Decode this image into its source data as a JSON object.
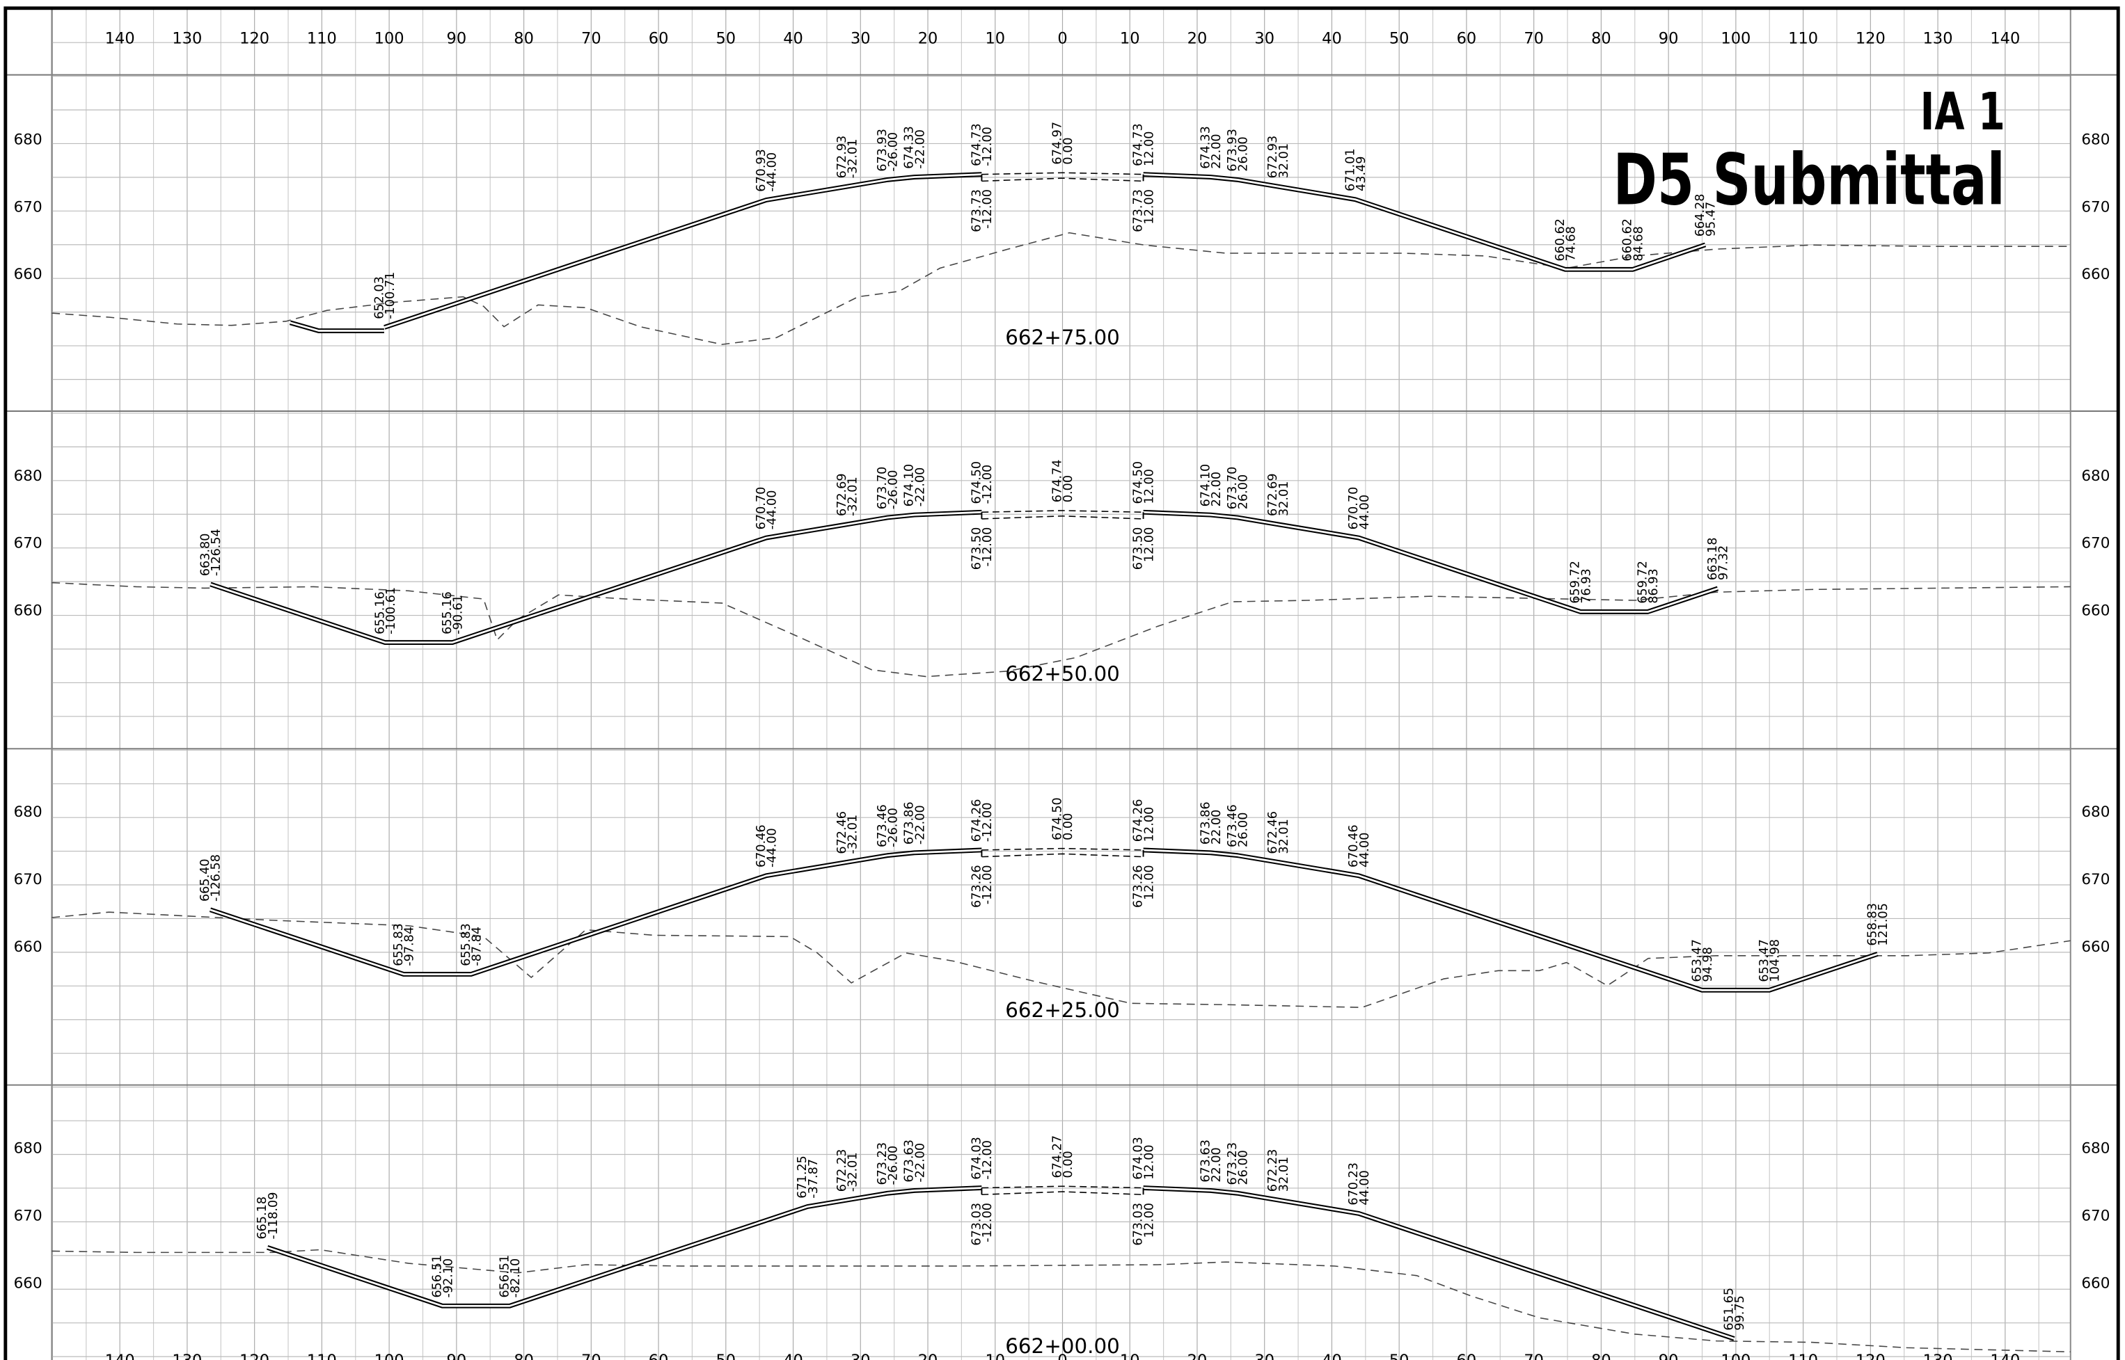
{
  "title": {
    "line1": "IA 1",
    "line2": "D5 Submittal"
  },
  "offset_labels": [
    "140",
    "130",
    "120",
    "110",
    "100",
    "90",
    "80",
    "70",
    "60",
    "50",
    "40",
    "30",
    "20",
    "10",
    "0",
    "10",
    "20",
    "30",
    "40",
    "50",
    "60",
    "70",
    "80",
    "90",
    "100",
    "110",
    "120",
    "130",
    "140"
  ],
  "elevation_labels": [
    "680",
    "670",
    "660"
  ],
  "sections": [
    {
      "station": "662+75.00",
      "left": [
        {
          "elev": "652.03",
          "offset": "-100.71"
        },
        {
          "elev": "670.93",
          "offset": "-44.00"
        },
        {
          "elev": "672.93",
          "offset": "-32.01"
        },
        {
          "elev": "673.93",
          "offset": "-26.00"
        },
        {
          "elev": "674.33",
          "offset": "-22.00"
        },
        {
          "elev": "674.73",
          "offset": "-12.00"
        }
      ],
      "center": {
        "elev": "674.97",
        "offset": "0.00"
      },
      "right": [
        {
          "elev": "674.73",
          "offset": "12.00"
        },
        {
          "elev": "674.33",
          "offset": "22.00"
        },
        {
          "elev": "673.93",
          "offset": "26.00"
        },
        {
          "elev": "672.93",
          "offset": "32.01"
        },
        {
          "elev": "671.01",
          "offset": "43.49"
        },
        {
          "elev": "660.62",
          "offset": "74.68"
        },
        {
          "elev": "660.62",
          "offset": "84.68"
        },
        {
          "elev": "664.28",
          "offset": "95.47"
        }
      ],
      "base": [
        {
          "elev": "673.73",
          "offset": "-12.00"
        },
        {
          "elev": "673.73",
          "offset": "12.00"
        }
      ]
    },
    {
      "station": "662+50.00",
      "left": [
        {
          "elev": "663.80",
          "offset": "-126.54"
        },
        {
          "elev": "655.16",
          "offset": "-100.61"
        },
        {
          "elev": "655.16",
          "offset": "-90.61"
        },
        {
          "elev": "670.70",
          "offset": "-44.00"
        },
        {
          "elev": "672.69",
          "offset": "-32.01"
        },
        {
          "elev": "673.70",
          "offset": "-26.00"
        },
        {
          "elev": "674.10",
          "offset": "-22.00"
        },
        {
          "elev": "674.50",
          "offset": "-12.00"
        }
      ],
      "center": {
        "elev": "674.74",
        "offset": "0.00"
      },
      "right": [
        {
          "elev": "674.50",
          "offset": "12.00"
        },
        {
          "elev": "674.10",
          "offset": "22.00"
        },
        {
          "elev": "673.70",
          "offset": "26.00"
        },
        {
          "elev": "672.69",
          "offset": "32.01"
        },
        {
          "elev": "670.70",
          "offset": "44.00"
        },
        {
          "elev": "659.72",
          "offset": "76.93"
        },
        {
          "elev": "659.72",
          "offset": "86.93"
        },
        {
          "elev": "663.18",
          "offset": "97.32"
        }
      ],
      "base": [
        {
          "elev": "673.50",
          "offset": "-12.00"
        },
        {
          "elev": "673.50",
          "offset": "12.00"
        }
      ]
    },
    {
      "station": "662+25.00",
      "left": [
        {
          "elev": "665.40",
          "offset": "-126.58"
        },
        {
          "elev": "655.83",
          "offset": "-97.84"
        },
        {
          "elev": "655.83",
          "offset": "-87.84"
        },
        {
          "elev": "670.46",
          "offset": "-44.00"
        },
        {
          "elev": "672.46",
          "offset": "-32.01"
        },
        {
          "elev": "673.46",
          "offset": "-26.00"
        },
        {
          "elev": "673.86",
          "offset": "-22.00"
        },
        {
          "elev": "674.26",
          "offset": "-12.00"
        }
      ],
      "center": {
        "elev": "674.50",
        "offset": "0.00"
      },
      "right": [
        {
          "elev": "674.26",
          "offset": "12.00"
        },
        {
          "elev": "673.86",
          "offset": "22.00"
        },
        {
          "elev": "673.46",
          "offset": "26.00"
        },
        {
          "elev": "672.46",
          "offset": "32.01"
        },
        {
          "elev": "670.46",
          "offset": "44.00"
        },
        {
          "elev": "653.47",
          "offset": "94.98"
        },
        {
          "elev": "653.47",
          "offset": "104.98"
        },
        {
          "elev": "658.83",
          "offset": "121.05"
        }
      ],
      "base": [
        {
          "elev": "673.26",
          "offset": "-12.00"
        },
        {
          "elev": "673.26",
          "offset": "12.00"
        }
      ]
    },
    {
      "station": "662+00.00",
      "left": [
        {
          "elev": "665.18",
          "offset": "-118.09"
        },
        {
          "elev": "656.51",
          "offset": "-92.10"
        },
        {
          "elev": "656.51",
          "offset": "-82.10"
        },
        {
          "elev": "671.25",
          "offset": "-37.87"
        },
        {
          "elev": "672.23",
          "offset": "-32.01"
        },
        {
          "elev": "673.23",
          "offset": "-26.00"
        },
        {
          "elev": "673.63",
          "offset": "-22.00"
        },
        {
          "elev": "674.03",
          "offset": "-12.00"
        }
      ],
      "center": {
        "elev": "674.27",
        "offset": "0.00"
      },
      "right": [
        {
          "elev": "674.03",
          "offset": "12.00"
        },
        {
          "elev": "673.63",
          "offset": "22.00"
        },
        {
          "elev": "673.23",
          "offset": "26.00"
        },
        {
          "elev": "672.23",
          "offset": "32.01"
        },
        {
          "elev": "670.23",
          "offset": "44.00"
        },
        {
          "elev": "651.65",
          "offset": "99.75"
        }
      ],
      "base": [
        {
          "elev": "673.03",
          "offset": "-12.00"
        },
        {
          "elev": "673.03",
          "offset": "12.00"
        }
      ]
    }
  ]
}
